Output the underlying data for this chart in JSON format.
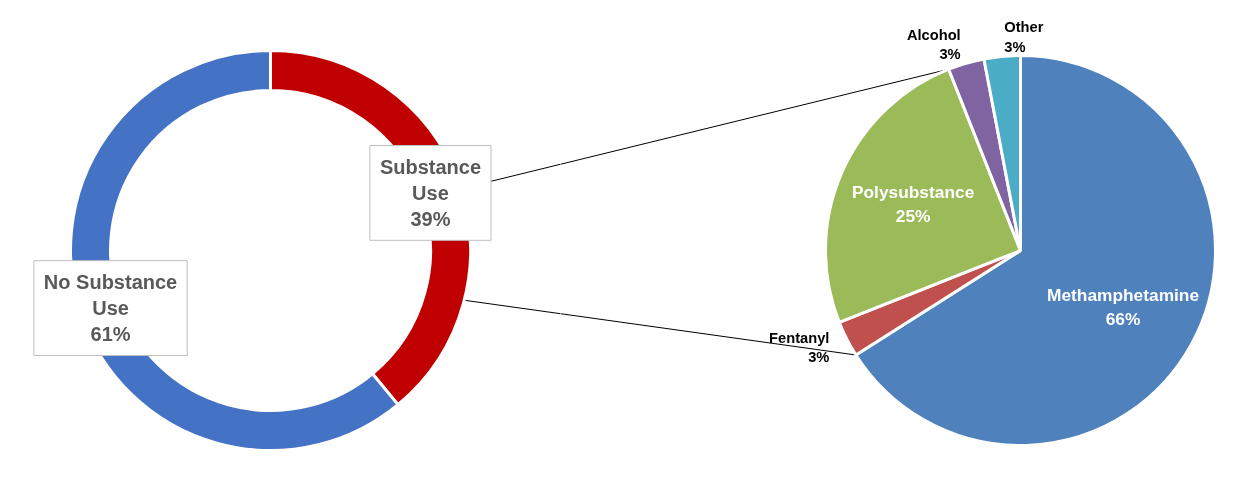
{
  "chart_data": [
    {
      "type": "donut",
      "categories": [
        "Substance Use",
        "No Substance Use"
      ],
      "values": [
        39,
        61
      ],
      "colors": [
        "#c00000",
        "#4472c4"
      ],
      "value_labels": [
        "39%",
        "61%"
      ]
    },
    {
      "type": "pie",
      "categories": [
        "Methamphetamine",
        "Fentanyl",
        "Polysubstance",
        "Alcohol",
        "Other"
      ],
      "values": [
        66,
        3,
        25,
        3,
        3
      ],
      "colors": [
        "#4f81bd",
        "#c0504d",
        "#9bbb59",
        "#8064a2",
        "#4bacc6"
      ],
      "value_labels": [
        "66%",
        "3%",
        "25%",
        "3%",
        "3%"
      ]
    }
  ]
}
